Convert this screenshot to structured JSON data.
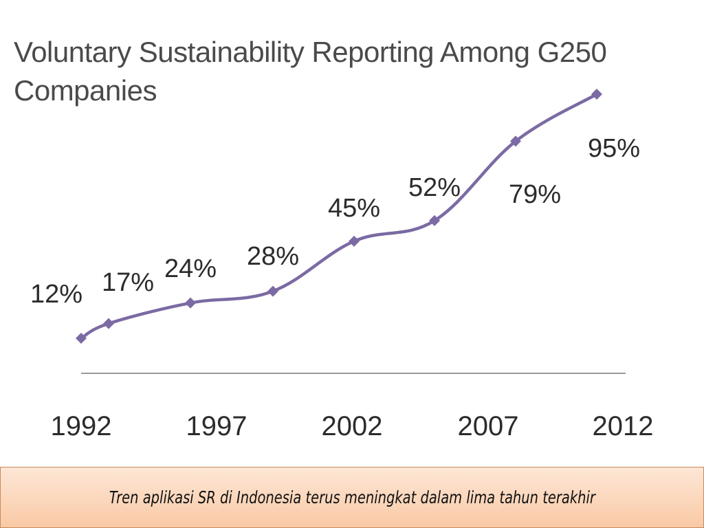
{
  "chart_data": {
    "type": "line",
    "title": "Voluntary Sustainability Reporting Among G250 Companies",
    "x_tick_labels": [
      "1992",
      "1997",
      "2002",
      "2007",
      "2012"
    ],
    "xlim": [
      1992,
      2012
    ],
    "series": [
      {
        "points": [
          {
            "x": 1993,
            "y": 12,
            "label": "12%"
          },
          {
            "x": 1994,
            "y": 17,
            "label": "17%"
          },
          {
            "x": 1997,
            "y": 24,
            "label": "24%"
          },
          {
            "x": 2000,
            "y": 28,
            "label": "28%"
          },
          {
            "x": 2003,
            "y": 45,
            "label": "45%"
          },
          {
            "x": 2006,
            "y": 52,
            "label": "52%"
          },
          {
            "x": 2009,
            "y": 79,
            "label": "79%"
          },
          {
            "x": 2011,
            "y": 95,
            "label": "95%"
          }
        ]
      }
    ],
    "line_color": "#7b6aa3",
    "grid": false
  },
  "footer": {
    "caption": "Tren aplikasi SR di Indonesia terus meningkat dalam lima tahun terakhir"
  }
}
